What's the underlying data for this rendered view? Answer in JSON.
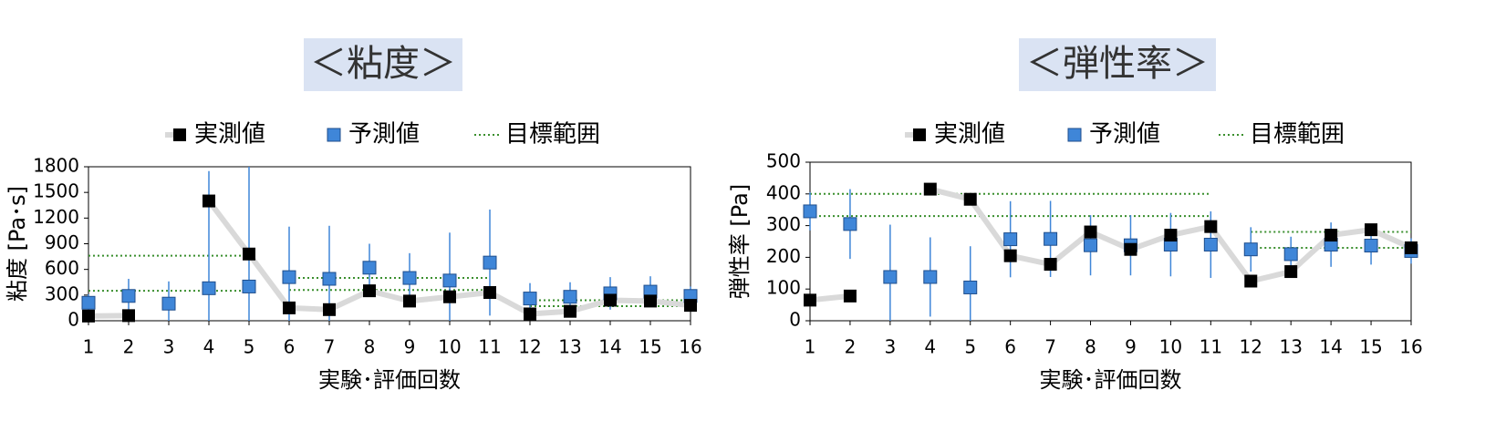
{
  "chart_data": [
    {
      "type": "scatter",
      "title": "＜粘度＞",
      "y_label": "粘度 [Pa･s]",
      "x_label": "実験･評価回数",
      "x": [
        1,
        2,
        3,
        4,
        5,
        6,
        7,
        8,
        9,
        10,
        11,
        12,
        13,
        14,
        15,
        16
      ],
      "xlim": [
        1,
        16
      ],
      "xticks": [
        1,
        2,
        3,
        4,
        5,
        6,
        7,
        8,
        9,
        10,
        11,
        12,
        13,
        14,
        15,
        16
      ],
      "ylim": [
        0,
        1800
      ],
      "yticks": [
        0,
        300,
        600,
        900,
        1200,
        1500,
        1800
      ],
      "series": [
        {
          "name": "実測値",
          "color": "#000000",
          "line_color": "#d9d9d9",
          "values": [
            55,
            60,
            null,
            1400,
            780,
            150,
            130,
            350,
            230,
            280,
            330,
            80,
            110,
            240,
            230,
            180
          ]
        },
        {
          "name": "予測値",
          "color": "#3f86d8",
          "values": [
            210,
            290,
            200,
            380,
            400,
            510,
            490,
            620,
            500,
            470,
            680,
            260,
            280,
            320,
            340,
            290
          ],
          "errors": [
            100,
            200,
            260,
            1370,
            1430,
            590,
            620,
            280,
            290,
            560,
            620,
            180,
            170,
            190,
            180,
            110
          ]
        },
        {
          "name": "目標範囲",
          "color": "#3a8f2e",
          "ranges": [
            {
              "x": [
                1,
                5
              ],
              "values": [
                760,
                350
              ]
            },
            {
              "x": [
                6,
                11
              ],
              "values": [
                500,
                360
              ]
            },
            {
              "x": [
                12,
                16
              ],
              "values": [
                240,
                170
              ]
            }
          ]
        }
      ]
    },
    {
      "type": "scatter",
      "title": "＜弾性率＞",
      "y_label": "弾性率 [Pa]",
      "x_label": "実験･評価回数",
      "x": [
        1,
        2,
        3,
        4,
        5,
        6,
        7,
        8,
        9,
        10,
        11,
        12,
        13,
        14,
        15,
        16
      ],
      "xlim": [
        1,
        16
      ],
      "xticks": [
        1,
        2,
        3,
        4,
        5,
        6,
        7,
        8,
        9,
        10,
        11,
        12,
        13,
        14,
        15,
        16
      ],
      "ylim": [
        0,
        500
      ],
      "yticks": [
        0,
        100,
        200,
        300,
        400,
        500
      ],
      "series": [
        {
          "name": "実測値",
          "color": "#000000",
          "line_color": "#d9d9d9",
          "values": [
            65,
            78,
            null,
            415,
            383,
            205,
            178,
            280,
            225,
            270,
            297,
            125,
            155,
            270,
            287,
            230
          ]
        },
        {
          "name": "予測値",
          "color": "#3f86d8",
          "values": [
            345,
            305,
            138,
            138,
            105,
            257,
            258,
            238,
            238,
            240,
            240,
            225,
            210,
            240,
            237,
            220
          ],
          "errors": [
            60,
            110,
            165,
            125,
            130,
            120,
            120,
            95,
            95,
            100,
            105,
            70,
            55,
            70,
            60,
            40
          ]
        },
        {
          "name": "目標範囲",
          "color": "#3a8f2e",
          "ranges": [
            {
              "x": [
                1,
                11
              ],
              "values": [
                400,
                330
              ]
            },
            {
              "x": [
                12,
                16
              ],
              "values": [
                280,
                230
              ]
            }
          ]
        }
      ]
    }
  ]
}
